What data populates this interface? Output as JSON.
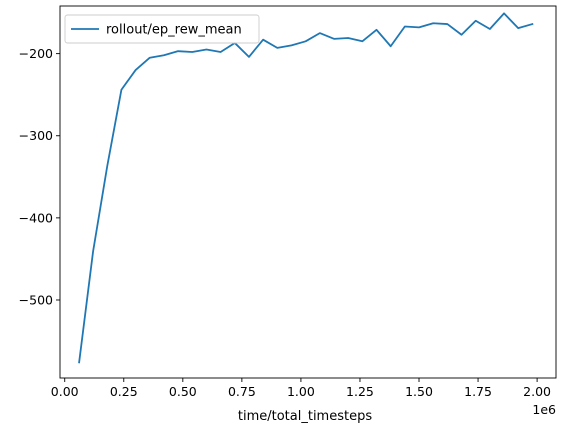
{
  "chart_data": {
    "type": "line",
    "title": "",
    "xlabel": "time/total_timesteps",
    "ylabel": "",
    "x_offset_text": "1e6",
    "xlim": [
      -0.02,
      2.08
    ],
    "ylim": [
      -595,
      -142
    ],
    "x_ticks": [
      0.0,
      0.25,
      0.5,
      0.75,
      1.0,
      1.25,
      1.5,
      1.75,
      2.0
    ],
    "x_tick_labels": [
      "0.00",
      "0.25",
      "0.50",
      "0.75",
      "1.00",
      "1.25",
      "1.50",
      "1.75",
      "2.00"
    ],
    "y_ticks": [
      -500,
      -400,
      -300,
      -200
    ],
    "y_tick_labels": [
      "−500",
      "−400",
      "−300",
      "−200"
    ],
    "grid": false,
    "legend_position": "top-left",
    "series": [
      {
        "name": "rollout/ep_rew_mean",
        "color": "#1f77b4",
        "x": [
          0.061,
          0.12,
          0.18,
          0.24,
          0.3,
          0.36,
          0.42,
          0.48,
          0.54,
          0.6,
          0.66,
          0.72,
          0.78,
          0.84,
          0.9,
          0.96,
          1.02,
          1.08,
          1.14,
          1.2,
          1.26,
          1.32,
          1.38,
          1.44,
          1.5,
          1.56,
          1.62,
          1.68,
          1.74,
          1.8,
          1.86,
          1.92,
          1.98
        ],
        "y": [
          -576,
          -441,
          -337,
          -244,
          -220,
          -205,
          -202,
          -197,
          -198,
          -195,
          -198,
          -187,
          -204,
          -183,
          -193,
          -190,
          -185,
          -175,
          -182,
          -181,
          -185,
          -171,
          -191,
          -167,
          -168,
          -163,
          -164,
          -177,
          -160,
          -170,
          -151,
          -169,
          -164
        ]
      }
    ]
  }
}
